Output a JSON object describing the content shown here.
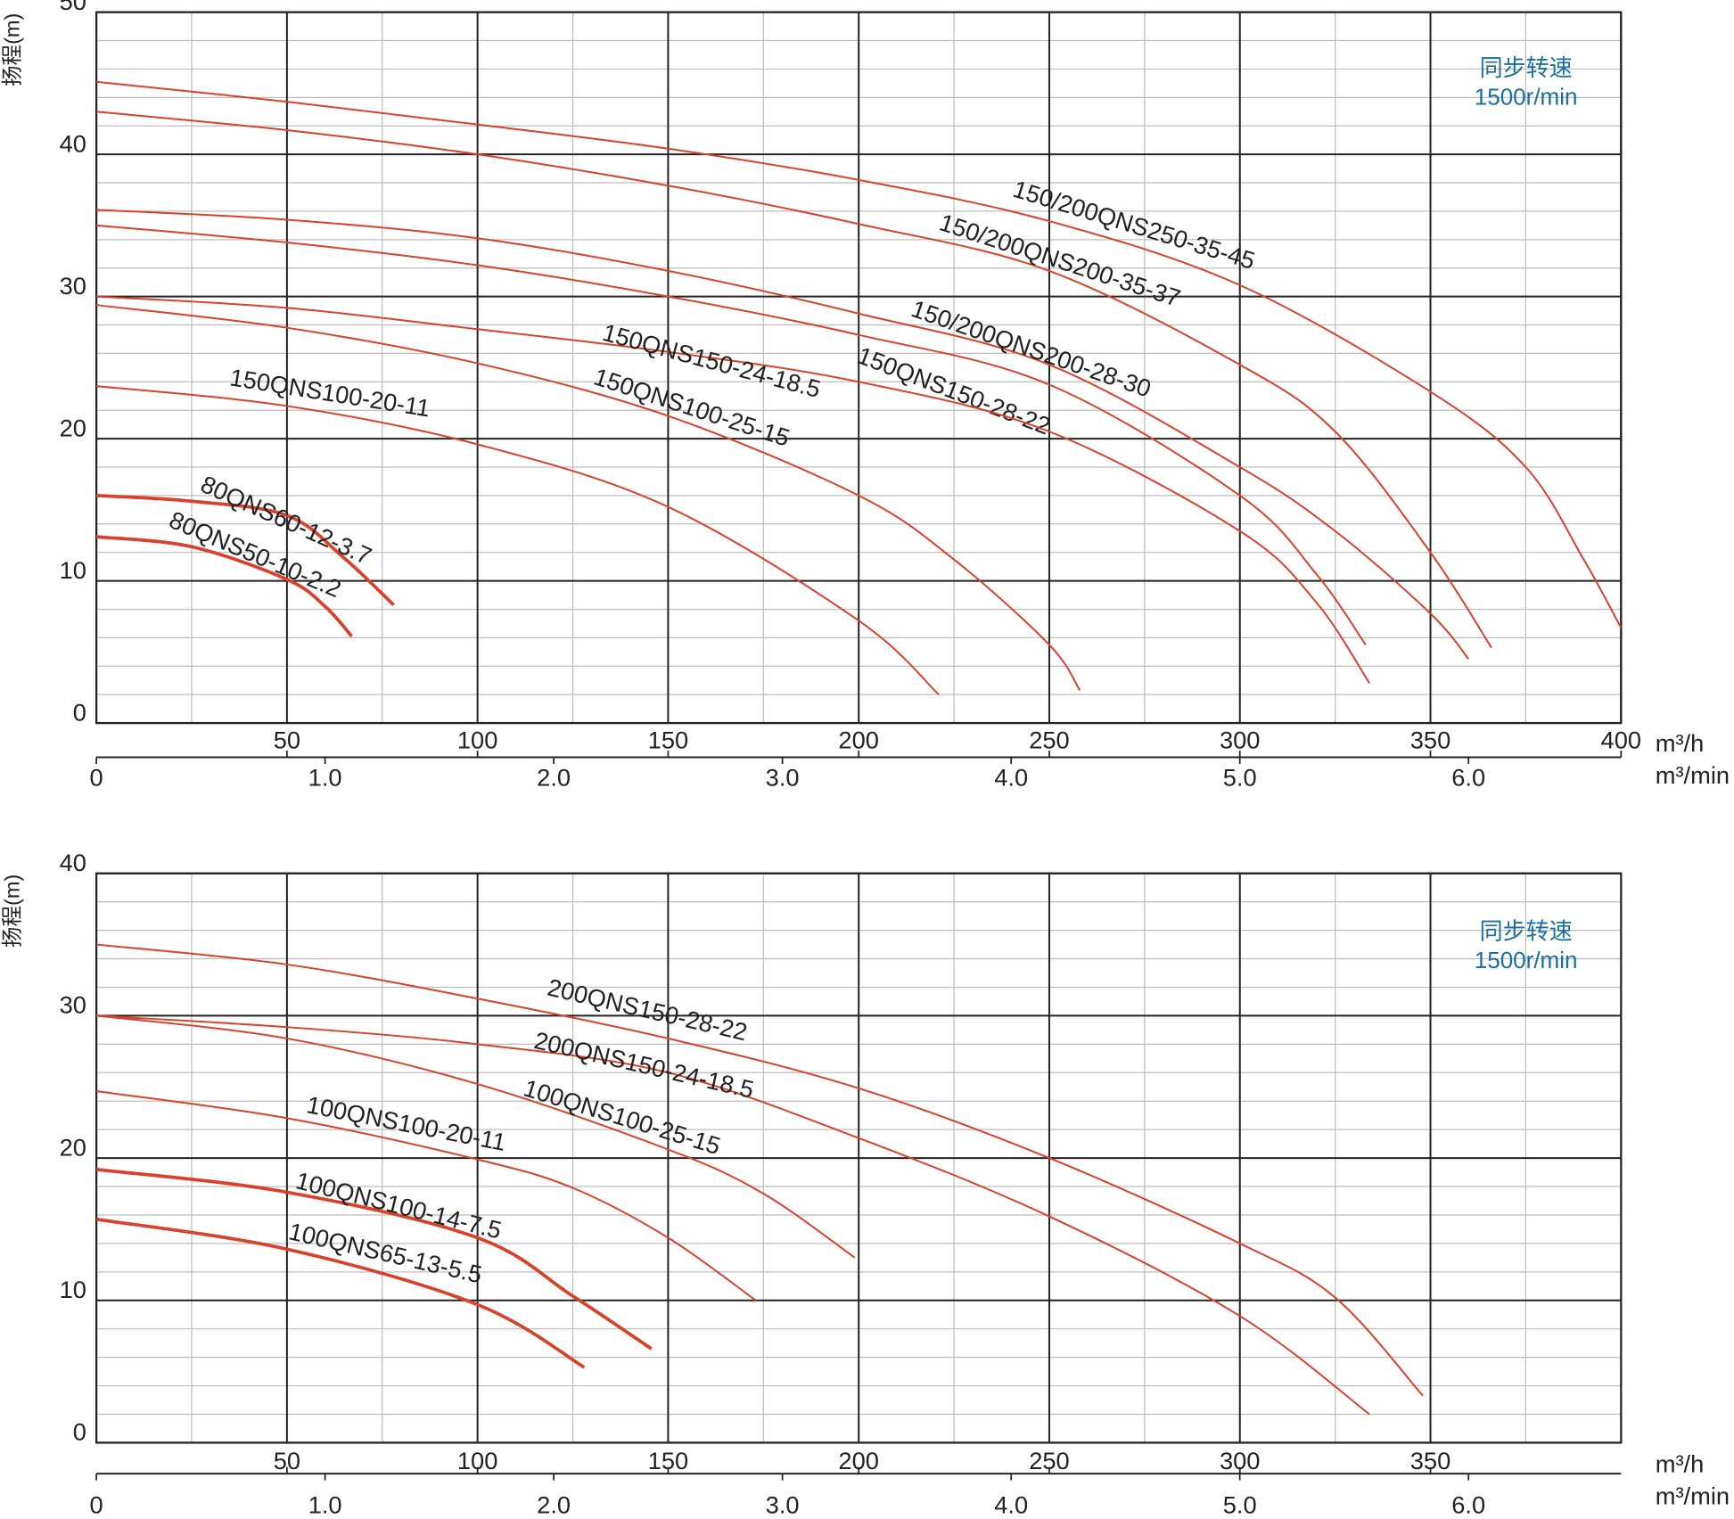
{
  "chart_data": [
    {
      "type": "line",
      "y_label": "扬程(m)",
      "x_label": "m³/h",
      "x2_label": "m³/min",
      "annotations": [
        "同步转速",
        "1500r/min"
      ],
      "xlim": [
        0,
        400
      ],
      "ylim": [
        0,
        50
      ],
      "x2lim": [
        0,
        6.667
      ],
      "xticks": [
        50,
        100,
        150,
        200,
        250,
        300,
        350,
        400
      ],
      "yticks": [
        0,
        10,
        20,
        30,
        40,
        50
      ],
      "x2ticks": [
        0,
        {
          "value": 1,
          "label": "1.0"
        },
        {
          "value": 2,
          "label": "2.0"
        },
        {
          "value": 3,
          "label": "3.0"
        },
        {
          "value": 4,
          "label": "4.0"
        },
        {
          "value": 5,
          "label": "5.0"
        },
        {
          "value": 6,
          "label": "6.0"
        }
      ],
      "xminor": [
        25,
        75,
        125,
        175,
        225,
        275,
        325,
        375
      ],
      "yminor": [
        2,
        4,
        6,
        8,
        12,
        14,
        16,
        18,
        22,
        24,
        26,
        28,
        32,
        34,
        36,
        38,
        42,
        44,
        46,
        48
      ],
      "grid": true,
      "series": [
        {
          "name": "150/200QNS250-35-45",
          "color": "#d9412b",
          "linewidth": 1.6,
          "x": [
            0,
            50,
            100,
            150,
            200,
            250,
            300,
            350,
            375,
            390,
            400
          ],
          "values": [
            45.1,
            43.7,
            42.1,
            40.4,
            38.2,
            35.3,
            30.8,
            23.3,
            18,
            11.6,
            6.7
          ]
        },
        {
          "name": "150/200QNS200-35-37",
          "color": "#d9412b",
          "linewidth": 1.6,
          "x": [
            0,
            50,
            100,
            150,
            200,
            250,
            300,
            325,
            350,
            366
          ],
          "values": [
            43,
            41.7,
            40,
            37.8,
            35.1,
            31.8,
            25.2,
            20.5,
            12,
            5.3
          ]
        },
        {
          "name": "150/200QNS200-28-30",
          "color": "#d9412b",
          "linewidth": 1.6,
          "x": [
            0,
            50,
            100,
            150,
            200,
            250,
            300,
            325,
            350,
            360
          ],
          "values": [
            36.1,
            35.4,
            34.1,
            31.8,
            28.8,
            25.2,
            18,
            13.5,
            7.7,
            4.5
          ]
        },
        {
          "name": "150QNS150-28-22",
          "color": "#d9412b",
          "linewidth": 1.6,
          "x": [
            0,
            50,
            100,
            150,
            200,
            250,
            300,
            320,
            333
          ],
          "values": [
            35,
            33.8,
            32.2,
            30,
            27.3,
            23.8,
            16,
            10.5,
            5.5
          ]
        },
        {
          "name": "150QNS150-24-18.5",
          "color": "#d9412b",
          "linewidth": 1.6,
          "x": [
            0,
            50,
            100,
            150,
            200,
            250,
            300,
            320,
            334
          ],
          "values": [
            30,
            29.2,
            27.7,
            26.1,
            24,
            20.5,
            13.5,
            8.5,
            2.8
          ]
        },
        {
          "name": "150QNS100-25-15",
          "color": "#d9412b",
          "linewidth": 1.6,
          "x": [
            0,
            50,
            100,
            150,
            200,
            225,
            250,
            258
          ],
          "values": [
            29.4,
            27.8,
            25.3,
            21.6,
            16,
            11.5,
            5.5,
            2.3
          ]
        },
        {
          "name": "150QNS100-20-11",
          "color": "#d9412b",
          "linewidth": 1.6,
          "x": [
            0,
            50,
            100,
            150,
            200,
            221
          ],
          "values": [
            23.7,
            22.3,
            19.6,
            15.2,
            7.2,
            2
          ]
        },
        {
          "name": "80QNS60-12-3.7",
          "color": "#d9412b",
          "linewidth": 3,
          "x": [
            0,
            25,
            50,
            65,
            78
          ],
          "values": [
            16,
            15.6,
            14.6,
            11.6,
            8.3
          ]
        },
        {
          "name": "80QNS50-10-2.2",
          "color": "#d9412b",
          "linewidth": 3,
          "x": [
            0,
            25,
            50,
            60,
            67
          ],
          "values": [
            13.1,
            12.4,
            10.1,
            8.2,
            6.1
          ]
        }
      ]
    },
    {
      "type": "line",
      "y_label": "扬程(m)",
      "x_label": "m³/h",
      "x2_label": "m³/min",
      "annotations": [
        "同步转速",
        "1500r/min"
      ],
      "xlim": [
        0,
        400
      ],
      "ylim": [
        0,
        40
      ],
      "x2lim": [
        0,
        6.667
      ],
      "xticks": [
        50,
        100,
        150,
        200,
        250,
        300,
        350
      ],
      "yticks": [
        0,
        10,
        20,
        30,
        40
      ],
      "x2ticks": [
        0,
        {
          "value": 1,
          "label": "1.0"
        },
        {
          "value": 2,
          "label": "2.0"
        },
        {
          "value": 3,
          "label": "3.0"
        },
        {
          "value": 4,
          "label": "4.0"
        },
        {
          "value": 5,
          "label": "5.0"
        },
        {
          "value": 6,
          "label": "6.0"
        }
      ],
      "xminor": [
        25,
        75,
        125,
        175,
        225,
        275,
        325,
        375
      ],
      "yminor": [
        2,
        4,
        6,
        8,
        12,
        14,
        16,
        18,
        22,
        24,
        26,
        28,
        32,
        34,
        36,
        38
      ],
      "grid": true,
      "series": [
        {
          "name": "200QNS150-28-22",
          "color": "#d9412b",
          "linewidth": 1.6,
          "x": [
            0,
            50,
            100,
            150,
            200,
            250,
            300,
            325,
            348
          ],
          "values": [
            35,
            33.6,
            31.2,
            28.4,
            24.9,
            20,
            14,
            10.2,
            3.3
          ]
        },
        {
          "name": "200QNS150-24-18.5",
          "color": "#d9412b",
          "linewidth": 1.6,
          "x": [
            0,
            50,
            100,
            150,
            200,
            250,
            300,
            334
          ],
          "values": [
            30,
            29.2,
            28,
            26,
            21.4,
            15.9,
            8.9,
            2
          ]
        },
        {
          "name": "100QNS100-25-15",
          "color": "#d9412b",
          "linewidth": 1.6,
          "x": [
            0,
            50,
            100,
            150,
            175,
            199
          ],
          "values": [
            30,
            28.4,
            25.2,
            20.6,
            17.5,
            13
          ]
        },
        {
          "name": "100QNS100-20-11",
          "color": "#d9412b",
          "linewidth": 1.6,
          "x": [
            0,
            50,
            100,
            125,
            150,
            173
          ],
          "values": [
            24.7,
            22.8,
            19.9,
            17.9,
            14.4,
            10
          ]
        },
        {
          "name": "100QNS100-14-7.5",
          "color": "#d9412b",
          "linewidth": 3,
          "x": [
            0,
            50,
            100,
            125,
            145.6
          ],
          "values": [
            19.2,
            17.6,
            14.4,
            10.3,
            6.6
          ]
        },
        {
          "name": "100QNS65-13-5.5",
          "color": "#d9412b",
          "linewidth": 3,
          "x": [
            0,
            50,
            100,
            128
          ],
          "values": [
            15.7,
            13.6,
            9.7,
            5.3
          ]
        }
      ]
    }
  ]
}
